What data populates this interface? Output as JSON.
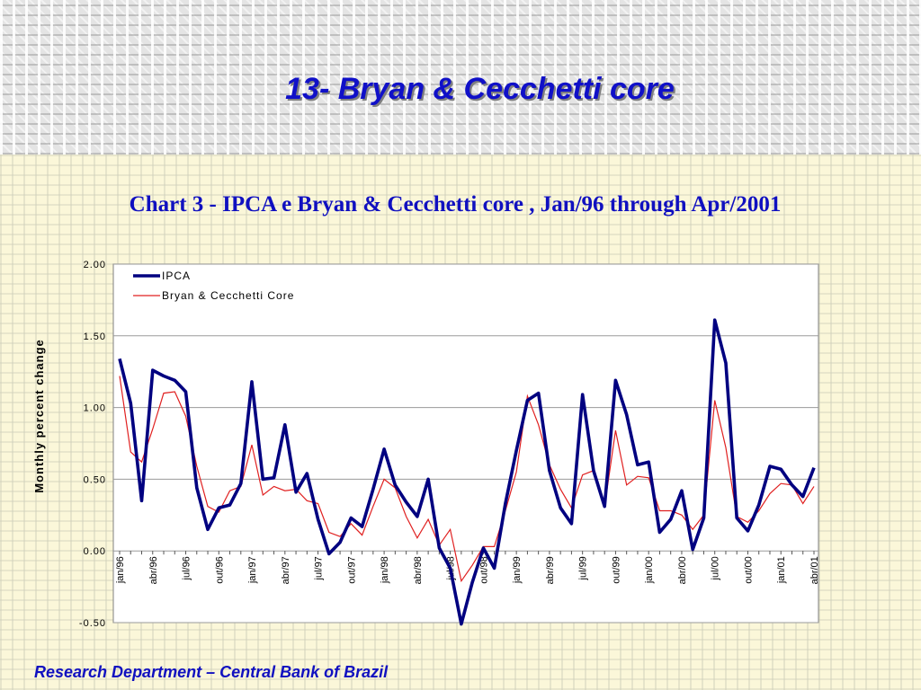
{
  "slide": {
    "title": "13- Bryan & Cecchetti core",
    "footer": "Research Department – Central Bank of Brazil"
  },
  "colors": {
    "title": "#1010c8",
    "ipca": "#000080",
    "core": "#e02020"
  },
  "chart_data": {
    "type": "line",
    "title": "Chart 3 - IPCA e Bryan & Cecchetti core , Jan/96 through Apr/2001",
    "ylabel": "Monthly percent change",
    "xlabel": "",
    "ylim": [
      -0.5,
      2.0
    ],
    "yticks": [
      "2.00",
      "1.50",
      "1.00",
      "0.50",
      "0.00",
      "-0.50"
    ],
    "ytick_values": [
      2.0,
      1.5,
      1.0,
      0.5,
      0.0,
      -0.5
    ],
    "grid": true,
    "legend": "top-left",
    "x": [
      "jan/96",
      "fev/96",
      "mar/96",
      "abr/96",
      "mai/96",
      "jun/96",
      "jul/96",
      "ago/96",
      "set/96",
      "out/96",
      "nov/96",
      "dez/96",
      "jan/97",
      "fev/97",
      "mar/97",
      "abr/97",
      "mai/97",
      "jun/97",
      "jul/97",
      "ago/97",
      "set/97",
      "out/97",
      "nov/97",
      "dez/97",
      "jan/98",
      "fev/98",
      "mar/98",
      "abr/98",
      "mai/98",
      "jun/98",
      "jul/98",
      "ago/98",
      "set/98",
      "out/98",
      "nov/98",
      "dez/98",
      "jan/99",
      "fev/99",
      "mar/99",
      "abr/99",
      "mai/99",
      "jun/99",
      "jul/99",
      "ago/99",
      "set/99",
      "out/99",
      "nov/99",
      "dez/99",
      "jan/00",
      "fev/00",
      "mar/00",
      "abr/00",
      "mai/00",
      "jun/00",
      "jul/00",
      "ago/00",
      "set/00",
      "out/00",
      "nov/00",
      "dez/00",
      "jan/01",
      "fev/01",
      "mar/01",
      "abr/01"
    ],
    "xtick_labels": [
      {
        "index": 0,
        "label": "jan/96"
      },
      {
        "index": 3,
        "label": "abr/96"
      },
      {
        "index": 6,
        "label": "jul/96"
      },
      {
        "index": 9,
        "label": "out/96"
      },
      {
        "index": 12,
        "label": "jan/97"
      },
      {
        "index": 15,
        "label": "abr/97"
      },
      {
        "index": 18,
        "label": "jul/97"
      },
      {
        "index": 21,
        "label": "out/97"
      },
      {
        "index": 24,
        "label": "jan/98"
      },
      {
        "index": 27,
        "label": "abr/98"
      },
      {
        "index": 30,
        "label": "jul/98"
      },
      {
        "index": 33,
        "label": "out/98"
      },
      {
        "index": 36,
        "label": "jan/99"
      },
      {
        "index": 39,
        "label": "abr/99"
      },
      {
        "index": 42,
        "label": "jul/99"
      },
      {
        "index": 45,
        "label": "out/99"
      },
      {
        "index": 48,
        "label": "jan/00"
      },
      {
        "index": 51,
        "label": "abr/00"
      },
      {
        "index": 54,
        "label": "jul/00"
      },
      {
        "index": 57,
        "label": "out/00"
      },
      {
        "index": 60,
        "label": "jan/01"
      },
      {
        "index": 63,
        "label": "abr/01"
      }
    ],
    "series": [
      {
        "name": "IPCA",
        "color": "#000080",
        "values": [
          1.34,
          1.03,
          0.35,
          1.26,
          1.22,
          1.19,
          1.11,
          0.44,
          0.15,
          0.3,
          0.32,
          0.47,
          1.18,
          0.5,
          0.51,
          0.88,
          0.41,
          0.54,
          0.22,
          -0.02,
          0.06,
          0.23,
          0.17,
          0.43,
          0.71,
          0.46,
          0.34,
          0.24,
          0.5,
          0.02,
          -0.12,
          -0.51,
          -0.22,
          0.02,
          -0.12,
          0.33,
          0.7,
          1.05,
          1.1,
          0.56,
          0.3,
          0.19,
          1.09,
          0.56,
          0.31,
          1.19,
          0.95,
          0.6,
          0.62,
          0.13,
          0.22,
          0.42,
          0.01,
          0.23,
          1.61,
          1.31,
          0.23,
          0.14,
          0.32,
          0.59,
          0.57,
          0.46,
          0.38,
          0.58
        ]
      },
      {
        "name": "Bryan & Cecchetti Core",
        "color": "#e02020",
        "values": [
          1.22,
          0.69,
          0.62,
          0.85,
          1.1,
          1.11,
          0.94,
          0.59,
          0.31,
          0.27,
          0.42,
          0.45,
          0.74,
          0.39,
          0.45,
          0.42,
          0.43,
          0.35,
          0.33,
          0.13,
          0.1,
          0.19,
          0.11,
          0.31,
          0.5,
          0.44,
          0.24,
          0.09,
          0.22,
          0.04,
          0.15,
          -0.21,
          -0.1,
          0.03,
          0.03,
          0.28,
          0.55,
          1.08,
          0.88,
          0.6,
          0.43,
          0.3,
          0.53,
          0.56,
          0.31,
          0.84,
          0.46,
          0.52,
          0.51,
          0.28,
          0.28,
          0.25,
          0.15,
          0.25,
          1.05,
          0.72,
          0.24,
          0.2,
          0.28,
          0.4,
          0.47,
          0.46,
          0.33,
          0.45
        ]
      }
    ]
  }
}
